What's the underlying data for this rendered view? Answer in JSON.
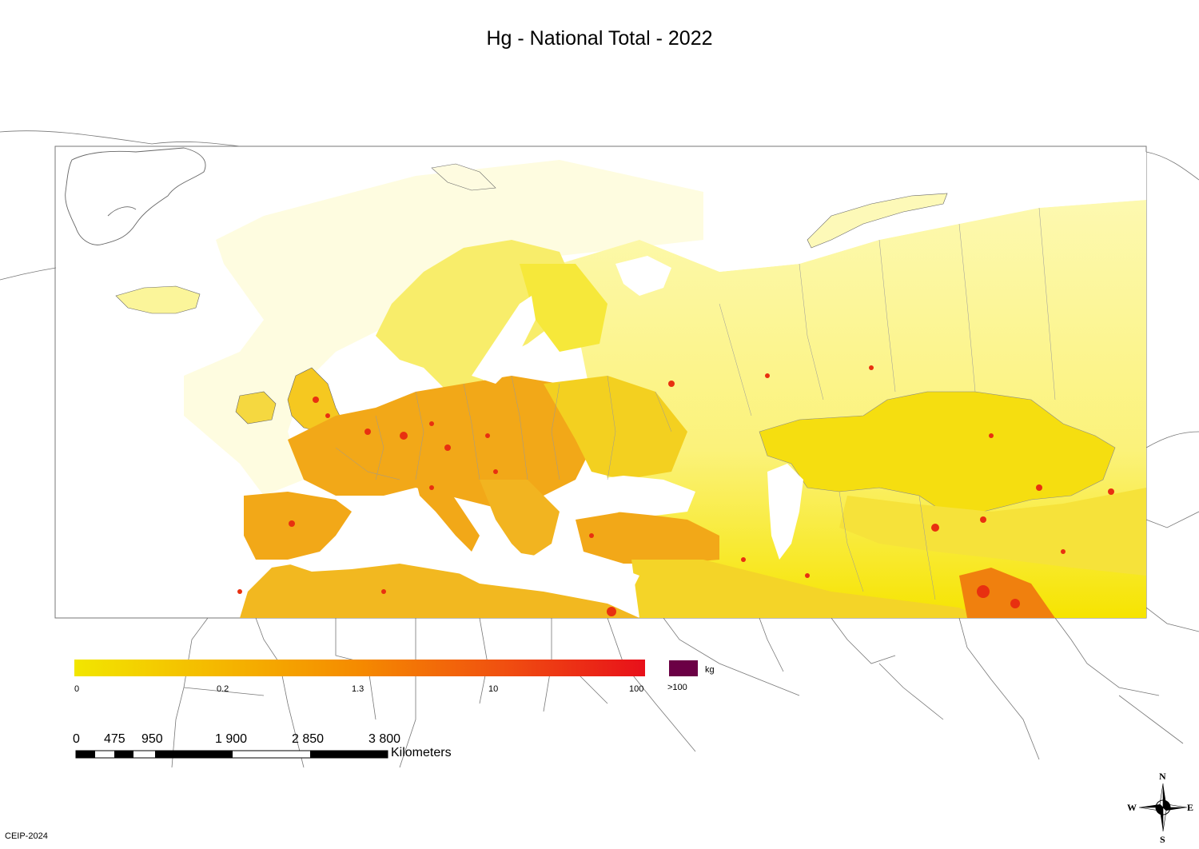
{
  "title": "Hg - National Total - 2022",
  "legend": {
    "tick_labels": [
      "0",
      "0.2",
      "1.3",
      "10",
      "100"
    ],
    "overflow_label": ">100",
    "unit": "kg",
    "gradient_colors": [
      "#f2e600",
      "#f5b800",
      "#f58a00",
      "#f05010",
      "#e8101a"
    ],
    "overflow_color": "#6b0045"
  },
  "scale_bar": {
    "tick_labels": [
      "0",
      "475",
      "950",
      "1 900",
      "2 850",
      "3 800"
    ],
    "unit": "Kilometers"
  },
  "compass": {
    "north": "N",
    "south": "S",
    "east": "E",
    "west": "W"
  },
  "credit": "CEIP-2024",
  "colors": {
    "land_low": "#fdf9b0",
    "land_mid": "#f5e600",
    "land_high": "#f0b000",
    "hotspot": "#e83010",
    "outline": "#555555"
  }
}
